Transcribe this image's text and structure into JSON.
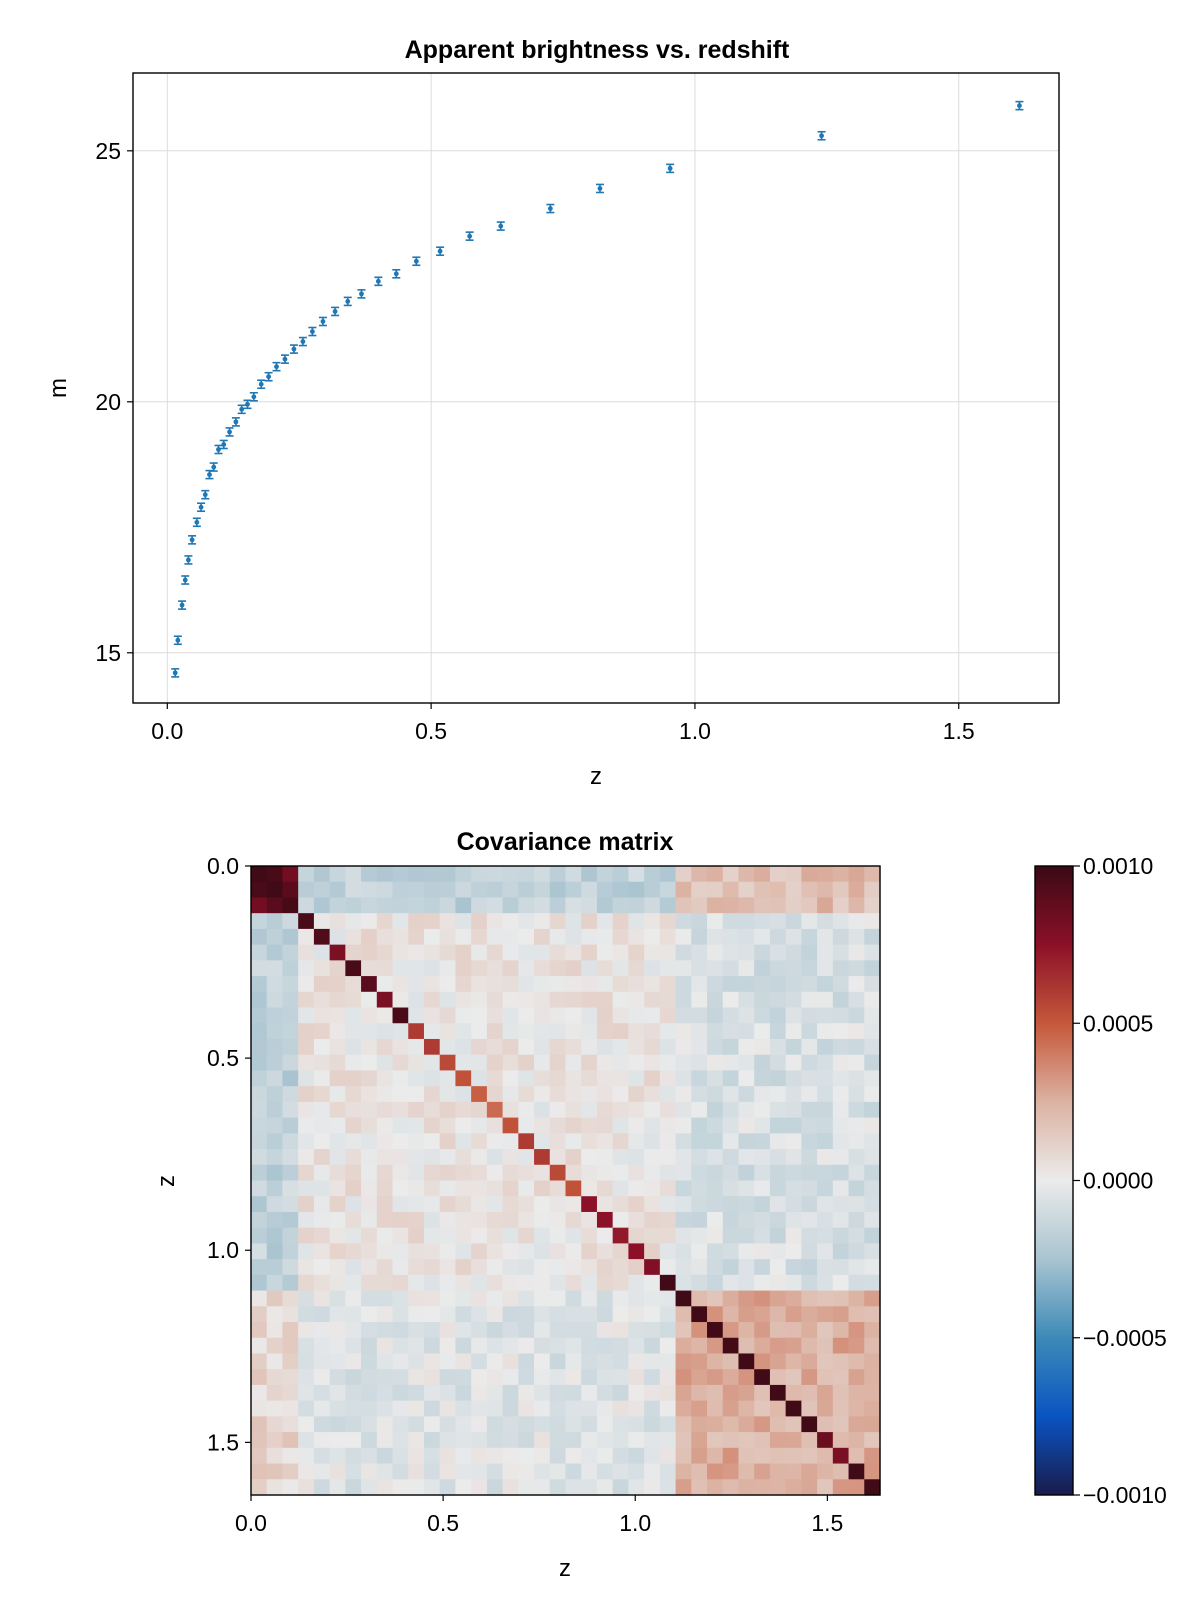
{
  "chart_data": [
    {
      "type": "scatter",
      "title": "Apparent brightness vs. redshift",
      "xlabel": "z",
      "ylabel": "m",
      "xlim": [
        -0.065,
        1.69
      ],
      "ylim": [
        14.0,
        26.55
      ],
      "xticks": [
        0.0,
        0.5,
        1.0,
        1.5
      ],
      "xtick_labels": [
        "0.0",
        "0.5",
        "1.0",
        "1.5"
      ],
      "yticks": [
        15,
        20,
        25
      ],
      "ytick_labels": [
        "15",
        "20",
        "25"
      ],
      "grid": true,
      "color": "#1f77b4",
      "error_bar": 0.08,
      "series": [
        {
          "x": [
            0.015,
            0.02,
            0.028,
            0.034,
            0.04,
            0.047,
            0.056,
            0.064,
            0.072,
            0.08,
            0.088,
            0.097,
            0.107,
            0.118,
            0.13,
            0.141,
            0.152,
            0.164,
            0.178,
            0.192,
            0.207,
            0.223,
            0.24,
            0.257,
            0.275,
            0.295,
            0.318,
            0.342,
            0.368,
            0.4,
            0.434,
            0.472,
            0.517,
            0.573,
            0.632,
            0.726,
            0.82,
            0.953,
            1.24,
            1.615
          ],
          "y": [
            14.6,
            15.25,
            15.95,
            16.45,
            16.85,
            17.25,
            17.6,
            17.9,
            18.15,
            18.55,
            18.7,
            19.05,
            19.15,
            19.4,
            19.6,
            19.85,
            19.95,
            20.1,
            20.35,
            20.5,
            20.7,
            20.85,
            21.05,
            21.2,
            21.4,
            21.6,
            21.8,
            22.0,
            22.15,
            22.4,
            22.55,
            22.8,
            23.0,
            23.3,
            23.5,
            23.85,
            24.25,
            24.65,
            25.3,
            25.9
          ]
        }
      ]
    },
    {
      "type": "heatmap",
      "title": "Covariance matrix",
      "xlabel": "z",
      "ylabel": "z",
      "n": 40,
      "extent": [
        0.0,
        1.637
      ],
      "xticks": [
        0.0,
        0.5,
        1.0,
        1.5
      ],
      "xtick_labels": [
        "0.0",
        "0.5",
        "1.0",
        "1.5"
      ],
      "yticks": [
        0.0,
        0.5,
        1.0,
        1.5
      ],
      "ytick_labels": [
        "0.0",
        "0.5",
        "1.0",
        "1.5"
      ],
      "clim": [
        -0.001,
        0.001
      ],
      "colorbar": {
        "ticks": [
          0.001,
          0.0005,
          0.0,
          -0.0005,
          -0.001
        ],
        "tick_labels": [
          "0.0010",
          "0.0005",
          "0.0000",
          "−0.0005",
          "−0.0010"
        ]
      },
      "colormap": [
        "#1a1b4b",
        "#0a54c2",
        "#3d8ab8",
        "#a9c4d0",
        "#ebebeb",
        "#dcb2a2",
        "#c5583b",
        "#8b1028",
        "#3a0a14"
      ],
      "diagonal": [
        0.00098,
        0.00098,
        0.00096,
        0.00095,
        0.00093,
        0.0008,
        0.00095,
        0.0009,
        0.0008,
        0.00095,
        0.0006,
        0.0006,
        0.00055,
        0.00052,
        0.00048,
        0.00045,
        0.00052,
        0.0006,
        0.0006,
        0.00055,
        0.00052,
        0.00075,
        0.00075,
        0.00072,
        0.00075,
        0.00078,
        0.00098,
        0.00098,
        0.00098,
        0.00098,
        0.00097,
        0.00098,
        0.00098,
        0.00098,
        0.00098,
        0.00098,
        0.00085,
        0.0008,
        0.00098,
        0.00098
      ],
      "blocks": [
        {
          "rows": [
            0,
            2
          ],
          "cols": [
            0,
            2
          ],
          "value": 0.0009
        },
        {
          "rows": [
            27,
            39
          ],
          "cols": [
            27,
            39
          ],
          "value": 0.00025
        },
        {
          "rows": [
            0,
            2
          ],
          "cols": [
            3,
            26
          ],
          "value": -0.00016
        },
        {
          "rows": [
            0,
            2
          ],
          "cols": [
            27,
            39
          ],
          "value": 0.0002
        },
        {
          "rows": [
            3,
            26
          ],
          "cols": [
            0,
            2
          ],
          "value": -0.00016
        },
        {
          "rows": [
            3,
            26
          ],
          "cols": [
            3,
            26
          ],
          "value": 3e-05
        },
        {
          "rows": [
            3,
            26
          ],
          "cols": [
            27,
            39
          ],
          "value": -7e-05
        },
        {
          "rows": [
            27,
            39
          ],
          "cols": [
            0,
            2
          ],
          "value": 0.0001
        },
        {
          "rows": [
            27,
            39
          ],
          "cols": [
            3,
            26
          ],
          "value": -4e-05
        }
      ],
      "noise": 9e-05
    }
  ]
}
